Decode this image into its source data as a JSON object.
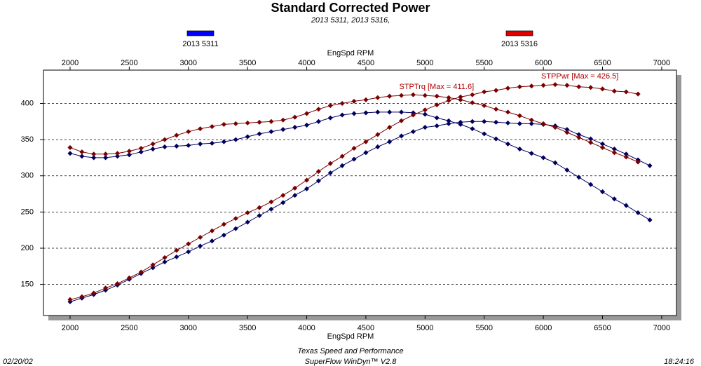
{
  "chart_data": {
    "type": "line",
    "title": "Standard Corrected Power",
    "subtitle": "2013 5311, 2013 5316,",
    "xlabel": "EngSpd  RPM",
    "legend": [
      {
        "name": "2013 5311",
        "color": "#0000ff"
      },
      {
        "name": "2013 5316",
        "color": "#e00000"
      }
    ],
    "series": [
      {
        "color": "#000060",
        "x": [
          2000,
          2100,
          2200,
          2300,
          2400,
          2500,
          2600,
          2700,
          2800,
          2900,
          3000,
          3100,
          3200,
          3300,
          3400,
          3500,
          3600,
          3700,
          3800,
          3900,
          4000,
          4100,
          4200,
          4300,
          4400,
          4500,
          4600,
          4700,
          4800,
          4900,
          5000,
          5100,
          5200,
          5300,
          5400,
          5500,
          5600,
          5700,
          5800,
          5900,
          6000,
          6100,
          6200,
          6300,
          6400,
          6500,
          6600,
          6700,
          6800,
          6900
        ],
        "values": [
          331,
          327,
          325,
          325,
          327,
          329,
          333,
          337,
          340,
          341,
          342,
          344,
          345,
          347,
          350,
          354,
          358,
          361,
          364,
          367,
          370,
          375,
          380,
          384,
          386,
          387,
          388,
          388,
          388,
          387,
          385,
          380,
          376,
          371,
          365,
          358,
          351,
          344,
          337,
          331,
          325,
          318,
          308,
          298,
          288,
          278,
          268,
          259,
          249,
          239
        ]
      },
      {
        "color": "#000060",
        "x": [
          2000,
          2100,
          2200,
          2300,
          2400,
          2500,
          2600,
          2700,
          2800,
          2900,
          3000,
          3100,
          3200,
          3300,
          3400,
          3500,
          3600,
          3700,
          3800,
          3900,
          4000,
          4100,
          4200,
          4300,
          4400,
          4500,
          4600,
          4700,
          4800,
          4900,
          5000,
          5100,
          5200,
          5300,
          5400,
          5500,
          5600,
          5700,
          5800,
          5900,
          6000,
          6100,
          6200,
          6300,
          6400,
          6500,
          6600,
          6700,
          6800,
          6900
        ],
        "values": [
          126,
          131,
          136,
          142,
          149,
          157,
          165,
          173,
          181,
          188,
          195,
          203,
          210,
          218,
          227,
          236,
          245,
          254,
          263,
          273,
          282,
          293,
          304,
          314,
          323,
          332,
          340,
          347,
          355,
          361,
          367,
          369,
          372,
          374,
          375,
          375,
          374,
          373,
          372,
          372,
          371,
          369,
          364,
          357,
          351,
          344,
          337,
          330,
          322,
          314
        ]
      },
      {
        "color": "#7a0000",
        "x": [
          2000,
          2100,
          2200,
          2300,
          2400,
          2500,
          2600,
          2700,
          2800,
          2900,
          3000,
          3100,
          3200,
          3300,
          3400,
          3500,
          3600,
          3700,
          3800,
          3900,
          4000,
          4100,
          4200,
          4300,
          4400,
          4500,
          4600,
          4700,
          4800,
          4900,
          5000,
          5100,
          5200,
          5300,
          5400,
          5500,
          5600,
          5700,
          5800,
          5900,
          6000,
          6100,
          6200,
          6300,
          6400,
          6500,
          6600,
          6700,
          6800
        ],
        "values": [
          339,
          333,
          330,
          330,
          331,
          334,
          338,
          344,
          350,
          356,
          361,
          365,
          368,
          371,
          372,
          373,
          374,
          375,
          377,
          381,
          386,
          392,
          397,
          400,
          403,
          405,
          408,
          410,
          411,
          412,
          411,
          410,
          408,
          405,
          401,
          397,
          392,
          388,
          383,
          377,
          372,
          367,
          360,
          353,
          346,
          339,
          332,
          326,
          319
        ]
      },
      {
        "color": "#7a0000",
        "x": [
          2000,
          2100,
          2200,
          2300,
          2400,
          2500,
          2600,
          2700,
          2800,
          2900,
          3000,
          3100,
          3200,
          3300,
          3400,
          3500,
          3600,
          3700,
          3800,
          3900,
          4000,
          4100,
          4200,
          4300,
          4400,
          4500,
          4600,
          4700,
          4800,
          4900,
          5000,
          5100,
          5200,
          5300,
          5400,
          5500,
          5600,
          5700,
          5800,
          5900,
          6000,
          6100,
          6200,
          6300,
          6400,
          6500,
          6600,
          6700,
          6800
        ],
        "values": [
          129,
          133,
          138,
          145,
          151,
          159,
          167,
          177,
          187,
          197,
          206,
          215,
          224,
          233,
          241,
          249,
          256,
          264,
          273,
          283,
          294,
          306,
          317,
          327,
          338,
          347,
          357,
          367,
          376,
          384,
          391,
          398,
          404,
          409,
          412,
          416,
          418,
          421,
          423,
          424,
          425,
          426,
          425,
          423,
          422,
          420,
          417,
          416,
          413
        ]
      }
    ],
    "annotations": [
      {
        "text": "STPTrq [Max = 411.6]",
        "x": 4900,
        "y": 412
      },
      {
        "text": "STPPwr [Max = 426.5]",
        "x": 6100,
        "y": 426.5
      }
    ],
    "xlim": [
      1775,
      7125
    ],
    "xticks": [
      2000,
      2500,
      3000,
      3500,
      4000,
      4500,
      5000,
      5500,
      6000,
      6500,
      7000
    ],
    "ylim": [
      107,
      446
    ],
    "yticks": [
      150,
      200,
      250,
      300,
      350,
      400
    ],
    "grid": true,
    "footer": {
      "date": "02/20/02",
      "company": "Texas Speed and Performance",
      "software": "SuperFlow WinDyn™ V2.8",
      "time": "18:24:16"
    }
  }
}
